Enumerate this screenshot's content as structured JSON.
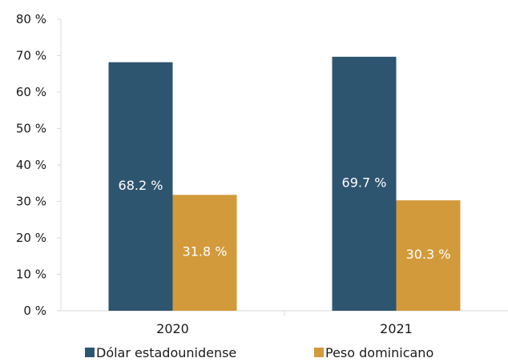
{
  "chart_data": {
    "type": "bar",
    "categories": [
      "2020",
      "2021"
    ],
    "series": [
      {
        "name": "Dólar estadounidense",
        "values": [
          68.2,
          69.7
        ],
        "labels": [
          "68.2 %",
          "69.7 %"
        ],
        "color": "#2e5570"
      },
      {
        "name": "Peso dominicano",
        "values": [
          31.8,
          30.3
        ],
        "labels": [
          "31.8 %",
          "30.3 %"
        ],
        "color": "#d39a3b"
      }
    ],
    "y_ticks": [
      "0 %",
      "10 %",
      "20 %",
      "30 %",
      "40 %",
      "50 %",
      "60 %",
      "70 %",
      "80 %"
    ],
    "ylim": [
      0,
      80
    ],
    "grid": false,
    "legend_position": "bottom",
    "title": "",
    "xlabel": "",
    "ylabel": ""
  }
}
